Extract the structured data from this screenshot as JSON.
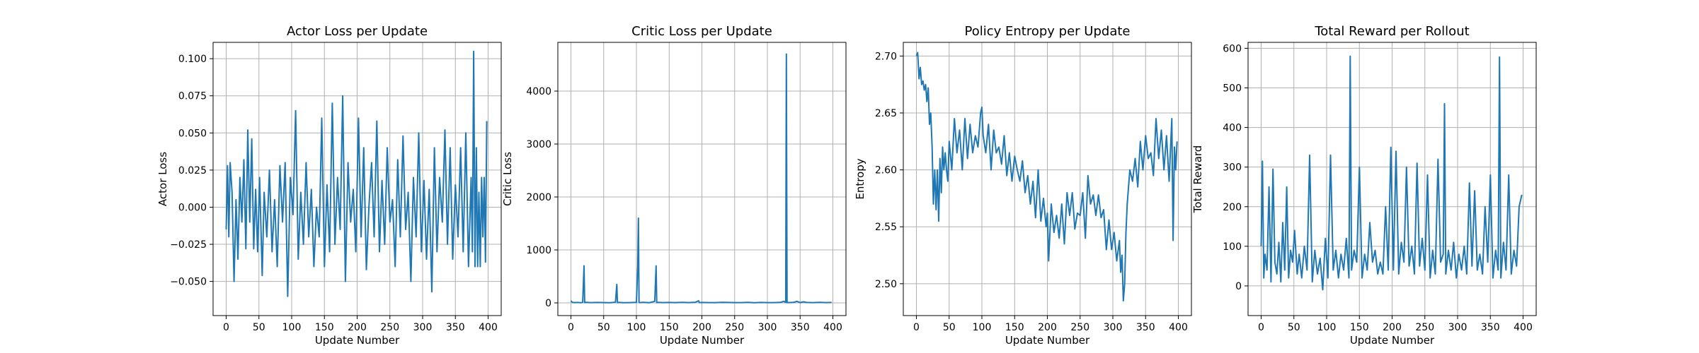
{
  "chart_data": [
    {
      "type": "line",
      "title": "Actor Loss per Update",
      "xlabel": "Update Number",
      "ylabel": "Actor Loss",
      "xlim": [
        -20,
        420
      ],
      "ylim": [
        -0.073,
        0.111
      ],
      "xticks": [
        0,
        50,
        100,
        150,
        200,
        250,
        300,
        350,
        400
      ],
      "xtick_labels": [
        "0",
        "50",
        "100",
        "150",
        "200",
        "250",
        "300",
        "350",
        "400"
      ],
      "yticks": [
        -0.05,
        -0.025,
        0.0,
        0.025,
        0.05,
        0.075,
        0.1
      ],
      "ytick_labels": [
        "−0.050",
        "−0.025",
        "0.000",
        "0.025",
        "0.050",
        "0.075",
        "0.100"
      ],
      "grid": true,
      "color": "#1f77b4",
      "series": [
        {
          "x": [
            0,
            2,
            4,
            6,
            9,
            12,
            15,
            18,
            21,
            24,
            27,
            30,
            33,
            36,
            39,
            42,
            45,
            48,
            51,
            55,
            58,
            62,
            66,
            70,
            74,
            78,
            82,
            86,
            90,
            94,
            98,
            102,
            106,
            110,
            114,
            118,
            122,
            126,
            130,
            134,
            138,
            142,
            146,
            150,
            154,
            158,
            162,
            166,
            170,
            174,
            178,
            182,
            186,
            190,
            194,
            198,
            202,
            206,
            210,
            214,
            218,
            222,
            226,
            230,
            234,
            238,
            242,
            246,
            250,
            254,
            258,
            262,
            266,
            270,
            274,
            278,
            282,
            286,
            290,
            294,
            298,
            302,
            306,
            310,
            314,
            318,
            322,
            326,
            330,
            334,
            338,
            342,
            346,
            350,
            354,
            358,
            362,
            366,
            370,
            374,
            376,
            378,
            380,
            382,
            384,
            386,
            388,
            390,
            392,
            394,
            396,
            398
          ],
          "y": [
            -0.015,
            0.028,
            -0.02,
            0.03,
            0.01,
            -0.05,
            0.005,
            -0.035,
            0.02,
            -0.01,
            0.032,
            -0.028,
            0.052,
            -0.01,
            0.046,
            -0.028,
            0.012,
            -0.03,
            0.02,
            -0.046,
            0.01,
            -0.02,
            0.025,
            -0.03,
            0.005,
            -0.04,
            0.028,
            -0.01,
            0.03,
            -0.06,
            0.02,
            -0.005,
            0.065,
            -0.035,
            0.01,
            -0.025,
            0.03,
            -0.02,
            0.012,
            -0.04,
            0.0,
            -0.02,
            0.06,
            -0.04,
            0.015,
            -0.03,
            0.07,
            -0.025,
            0.02,
            -0.015,
            0.075,
            -0.05,
            0.03,
            -0.01,
            0.012,
            -0.03,
            0.06,
            -0.02,
            0.04,
            -0.042,
            0.0,
            0.03,
            -0.02,
            0.058,
            -0.03,
            0.018,
            -0.025,
            0.04,
            -0.01,
            0.005,
            -0.04,
            0.032,
            -0.02,
            0.048,
            -0.015,
            0.01,
            -0.05,
            0.02,
            -0.02,
            0.05,
            -0.03,
            0.018,
            -0.035,
            0.012,
            -0.057,
            0.04,
            -0.03,
            0.02,
            -0.01,
            0.052,
            -0.025,
            0.04,
            -0.035,
            0.015,
            -0.02,
            0.04,
            -0.03,
            0.05,
            -0.04,
            0.02,
            -0.03,
            0.105,
            -0.04,
            0.04,
            -0.04,
            0.01,
            -0.04,
            0.02,
            -0.02,
            0.02,
            -0.037,
            0.058
          ]
        }
      ]
    },
    {
      "type": "line",
      "title": "Critic Loss per Update",
      "xlabel": "Update Number",
      "ylabel": "Critic Loss",
      "xlim": [
        -20,
        420
      ],
      "ylim": [
        -240,
        4920
      ],
      "xticks": [
        0,
        50,
        100,
        150,
        200,
        250,
        300,
        350,
        400
      ],
      "xtick_labels": [
        "0",
        "50",
        "100",
        "150",
        "200",
        "250",
        "300",
        "350",
        "400"
      ],
      "yticks": [
        0,
        1000,
        2000,
        3000,
        4000
      ],
      "ytick_labels": [
        "0",
        "1000",
        "2000",
        "3000",
        "4000"
      ],
      "grid": true,
      "color": "#1f77b4",
      "series": [
        {
          "x": [
            0,
            2,
            5,
            10,
            15,
            18,
            20,
            21,
            23,
            30,
            40,
            50,
            60,
            68,
            70,
            71,
            73,
            80,
            90,
            100,
            102,
            103,
            104,
            106,
            110,
            120,
            128,
            130,
            131,
            133,
            140,
            150,
            160,
            170,
            180,
            190,
            195,
            196,
            200,
            210,
            220,
            230,
            240,
            250,
            260,
            270,
            280,
            290,
            300,
            310,
            320,
            325,
            328,
            329,
            330,
            331,
            333,
            340,
            345,
            350,
            355,
            360,
            370,
            380,
            390,
            398
          ],
          "y": [
            40,
            10,
            5,
            8,
            3,
            10,
            700,
            5,
            10,
            5,
            8,
            6,
            4,
            12,
            350,
            5,
            8,
            4,
            6,
            10,
            700,
            1600,
            8,
            5,
            10,
            4,
            30,
            700,
            6,
            10,
            5,
            8,
            6,
            10,
            5,
            12,
            40,
            5,
            8,
            6,
            5,
            10,
            8,
            6,
            5,
            10,
            4,
            8,
            6,
            5,
            10,
            30,
            8,
            4700,
            5,
            8,
            6,
            10,
            30,
            5,
            20,
            8,
            6,
            10,
            5,
            8
          ]
        }
      ]
    },
    {
      "type": "line",
      "title": "Policy Entropy per Update",
      "xlabel": "Update Number",
      "ylabel": "Entropy",
      "xlim": [
        -20,
        420
      ],
      "ylim": [
        2.472,
        2.712
      ],
      "xticks": [
        0,
        50,
        100,
        150,
        200,
        250,
        300,
        350,
        400
      ],
      "xtick_labels": [
        "0",
        "50",
        "100",
        "150",
        "200",
        "250",
        "300",
        "350",
        "400"
      ],
      "yticks": [
        2.5,
        2.55,
        2.6,
        2.65,
        2.7
      ],
      "ytick_labels": [
        "2.50",
        "2.55",
        "2.60",
        "2.65",
        "2.70"
      ],
      "grid": true,
      "color": "#1f77b4",
      "series": [
        {
          "x": [
            0,
            2,
            4,
            6,
            8,
            10,
            12,
            14,
            16,
            18,
            20,
            22,
            24,
            26,
            28,
            30,
            32,
            34,
            36,
            38,
            40,
            42,
            44,
            46,
            48,
            50,
            54,
            58,
            62,
            66,
            70,
            74,
            78,
            82,
            86,
            90,
            94,
            98,
            100,
            102,
            106,
            110,
            114,
            118,
            122,
            126,
            130,
            134,
            138,
            142,
            146,
            150,
            154,
            158,
            162,
            166,
            170,
            174,
            178,
            182,
            186,
            190,
            194,
            198,
            200,
            202,
            206,
            210,
            214,
            218,
            222,
            226,
            230,
            234,
            238,
            242,
            246,
            250,
            254,
            258,
            262,
            266,
            270,
            274,
            278,
            282,
            286,
            290,
            294,
            298,
            302,
            306,
            310,
            312,
            314,
            316,
            318,
            320,
            322,
            326,
            330,
            334,
            338,
            342,
            346,
            350,
            354,
            358,
            362,
            366,
            370,
            374,
            378,
            382,
            386,
            390,
            392,
            394,
            396,
            398
          ],
          "y": [
            2.7,
            2.703,
            2.68,
            2.69,
            2.675,
            2.678,
            2.67,
            2.675,
            2.66,
            2.672,
            2.64,
            2.65,
            2.62,
            2.57,
            2.6,
            2.565,
            2.6,
            2.555,
            2.61,
            2.58,
            2.62,
            2.6,
            2.615,
            2.6,
            2.59,
            2.625,
            2.6,
            2.645,
            2.615,
            2.635,
            2.6,
            2.645,
            2.61,
            2.64,
            2.615,
            2.63,
            2.62,
            2.65,
            2.655,
            2.63,
            2.615,
            2.64,
            2.6,
            2.635,
            2.615,
            2.62,
            2.605,
            2.63,
            2.595,
            2.615,
            2.59,
            2.612,
            2.6,
            2.59,
            2.608,
            2.58,
            2.595,
            2.57,
            2.59,
            2.558,
            2.6,
            2.555,
            2.575,
            2.55,
            2.562,
            2.52,
            2.57,
            2.545,
            2.56,
            2.54,
            2.57,
            2.535,
            2.58,
            2.56,
            2.58,
            2.548,
            2.562,
            2.56,
            2.58,
            2.54,
            2.595,
            2.57,
            2.578,
            2.56,
            2.578,
            2.558,
            2.565,
            2.53,
            2.556,
            2.53,
            2.545,
            2.52,
            2.538,
            2.51,
            2.525,
            2.485,
            2.5,
            2.545,
            2.57,
            2.6,
            2.59,
            2.61,
            2.585,
            2.625,
            2.6,
            2.63,
            2.61,
            2.615,
            2.595,
            2.645,
            2.61,
            2.635,
            2.6,
            2.63,
            2.59,
            2.645,
            2.538,
            2.62,
            2.6,
            2.625
          ]
        }
      ]
    },
    {
      "type": "line",
      "title": "Total Reward per Rollout",
      "xlabel": "Update Number",
      "ylabel": "Total Reward",
      "xlim": [
        -20,
        420
      ],
      "ylim": [
        -75,
        615
      ],
      "xticks": [
        0,
        50,
        100,
        150,
        200,
        250,
        300,
        350,
        400
      ],
      "xtick_labels": [
        "0",
        "50",
        "100",
        "150",
        "200",
        "250",
        "300",
        "350",
        "400"
      ],
      "yticks": [
        0,
        100,
        200,
        300,
        400,
        500,
        600
      ],
      "ytick_labels": [
        "0",
        "100",
        "200",
        "300",
        "400",
        "500",
        "600"
      ],
      "grid": true,
      "color": "#1f77b4",
      "series": [
        {
          "x": [
            0,
            2,
            4,
            6,
            9,
            12,
            15,
            18,
            21,
            24,
            27,
            30,
            33,
            36,
            39,
            42,
            45,
            48,
            51,
            55,
            58,
            62,
            66,
            70,
            74,
            78,
            82,
            86,
            90,
            94,
            98,
            102,
            106,
            110,
            114,
            118,
            122,
            126,
            130,
            134,
            136,
            138,
            142,
            146,
            150,
            154,
            158,
            162,
            166,
            170,
            174,
            178,
            182,
            186,
            190,
            194,
            198,
            202,
            206,
            210,
            214,
            218,
            222,
            226,
            230,
            234,
            238,
            242,
            246,
            250,
            254,
            258,
            262,
            266,
            270,
            274,
            278,
            280,
            282,
            286,
            290,
            294,
            298,
            302,
            306,
            310,
            314,
            318,
            322,
            326,
            330,
            334,
            338,
            342,
            346,
            350,
            354,
            358,
            362,
            364,
            366,
            370,
            374,
            378,
            382,
            386,
            390,
            394,
            398
          ],
          "y": [
            100,
            315,
            20,
            80,
            40,
            250,
            10,
            295,
            60,
            30,
            110,
            10,
            160,
            40,
            250,
            20,
            90,
            60,
            140,
            30,
            80,
            20,
            100,
            40,
            330,
            10,
            90,
            30,
            70,
            -10,
            120,
            20,
            330,
            40,
            90,
            20,
            80,
            40,
            120,
            20,
            580,
            40,
            90,
            60,
            300,
            20,
            80,
            40,
            160,
            60,
            90,
            30,
            60,
            30,
            200,
            40,
            350,
            40,
            340,
            30,
            110,
            60,
            300,
            50,
            100,
            30,
            310,
            50,
            120,
            40,
            280,
            20,
            90,
            30,
            320,
            60,
            80,
            460,
            30,
            90,
            40,
            110,
            20,
            80,
            40,
            100,
            30,
            260,
            50,
            240,
            40,
            80,
            30,
            200,
            60,
            280,
            20,
            90,
            40,
            578,
            20,
            110,
            40,
            280,
            30,
            90,
            50,
            200,
            230
          ]
        }
      ]
    }
  ]
}
